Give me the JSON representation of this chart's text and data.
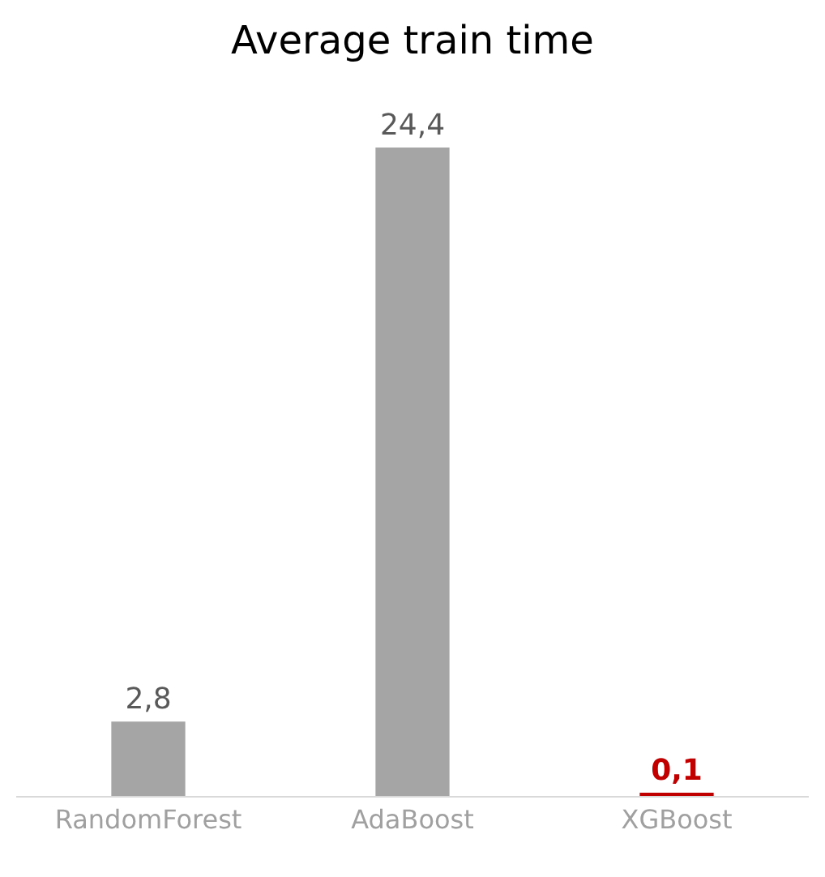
{
  "chart_data": {
    "type": "bar",
    "title": "Average train time",
    "categories": [
      "RandomForest",
      "AdaBoost",
      "XGBoost"
    ],
    "values": [
      2.8,
      24.4,
      0.1
    ],
    "colors": [
      "#a5a5a5",
      "#a5a5a5",
      "#c00000"
    ],
    "value_labels": [
      "2,8",
      "24,4",
      "0,1"
    ],
    "legend": false
  }
}
